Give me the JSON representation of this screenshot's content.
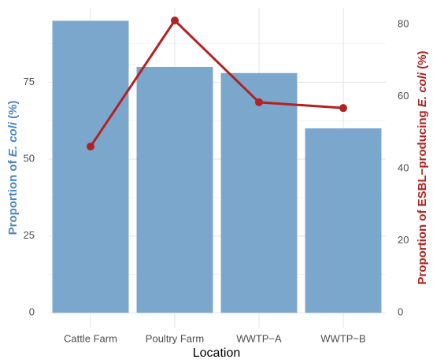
{
  "chart_data": {
    "type": "bar-line",
    "categories": [
      "Cattle Farm",
      "Poultry Farm",
      "WWTP−A",
      "WWTP−B"
    ],
    "x_label": "Location",
    "y_label": [
      {
        "text": "Proportion of "
      },
      {
        "text": "E. coli",
        "italic": true
      },
      {
        "text": " (%)"
      }
    ],
    "y2_label": [
      {
        "text": "Proportion of ESBL−producing "
      },
      {
        "text": "E. coli",
        "italic": true
      },
      {
        "text": " (%)"
      }
    ],
    "series": [
      {
        "type": "bar",
        "color": "#7ba7cd",
        "values": [
          95,
          80,
          78,
          60
        ]
      },
      {
        "type": "line",
        "axis": "y2",
        "color": "#b22222",
        "values": [
          46.1,
          81.1,
          58.4,
          56.8
        ]
      }
    ],
    "ylim": [
      -4.8,
      99.2
    ],
    "yticks": [
      0,
      25,
      50,
      75
    ],
    "minor_yticks": [
      12.5,
      37.5,
      62.5,
      87.5
    ],
    "y2lim": [
      -4.15,
      84.6
    ],
    "y2ticks": [
      0,
      20,
      40,
      60,
      80
    ],
    "y_label_color": "#4a86c0",
    "y2_label_color": "#b22222",
    "grid": true
  }
}
